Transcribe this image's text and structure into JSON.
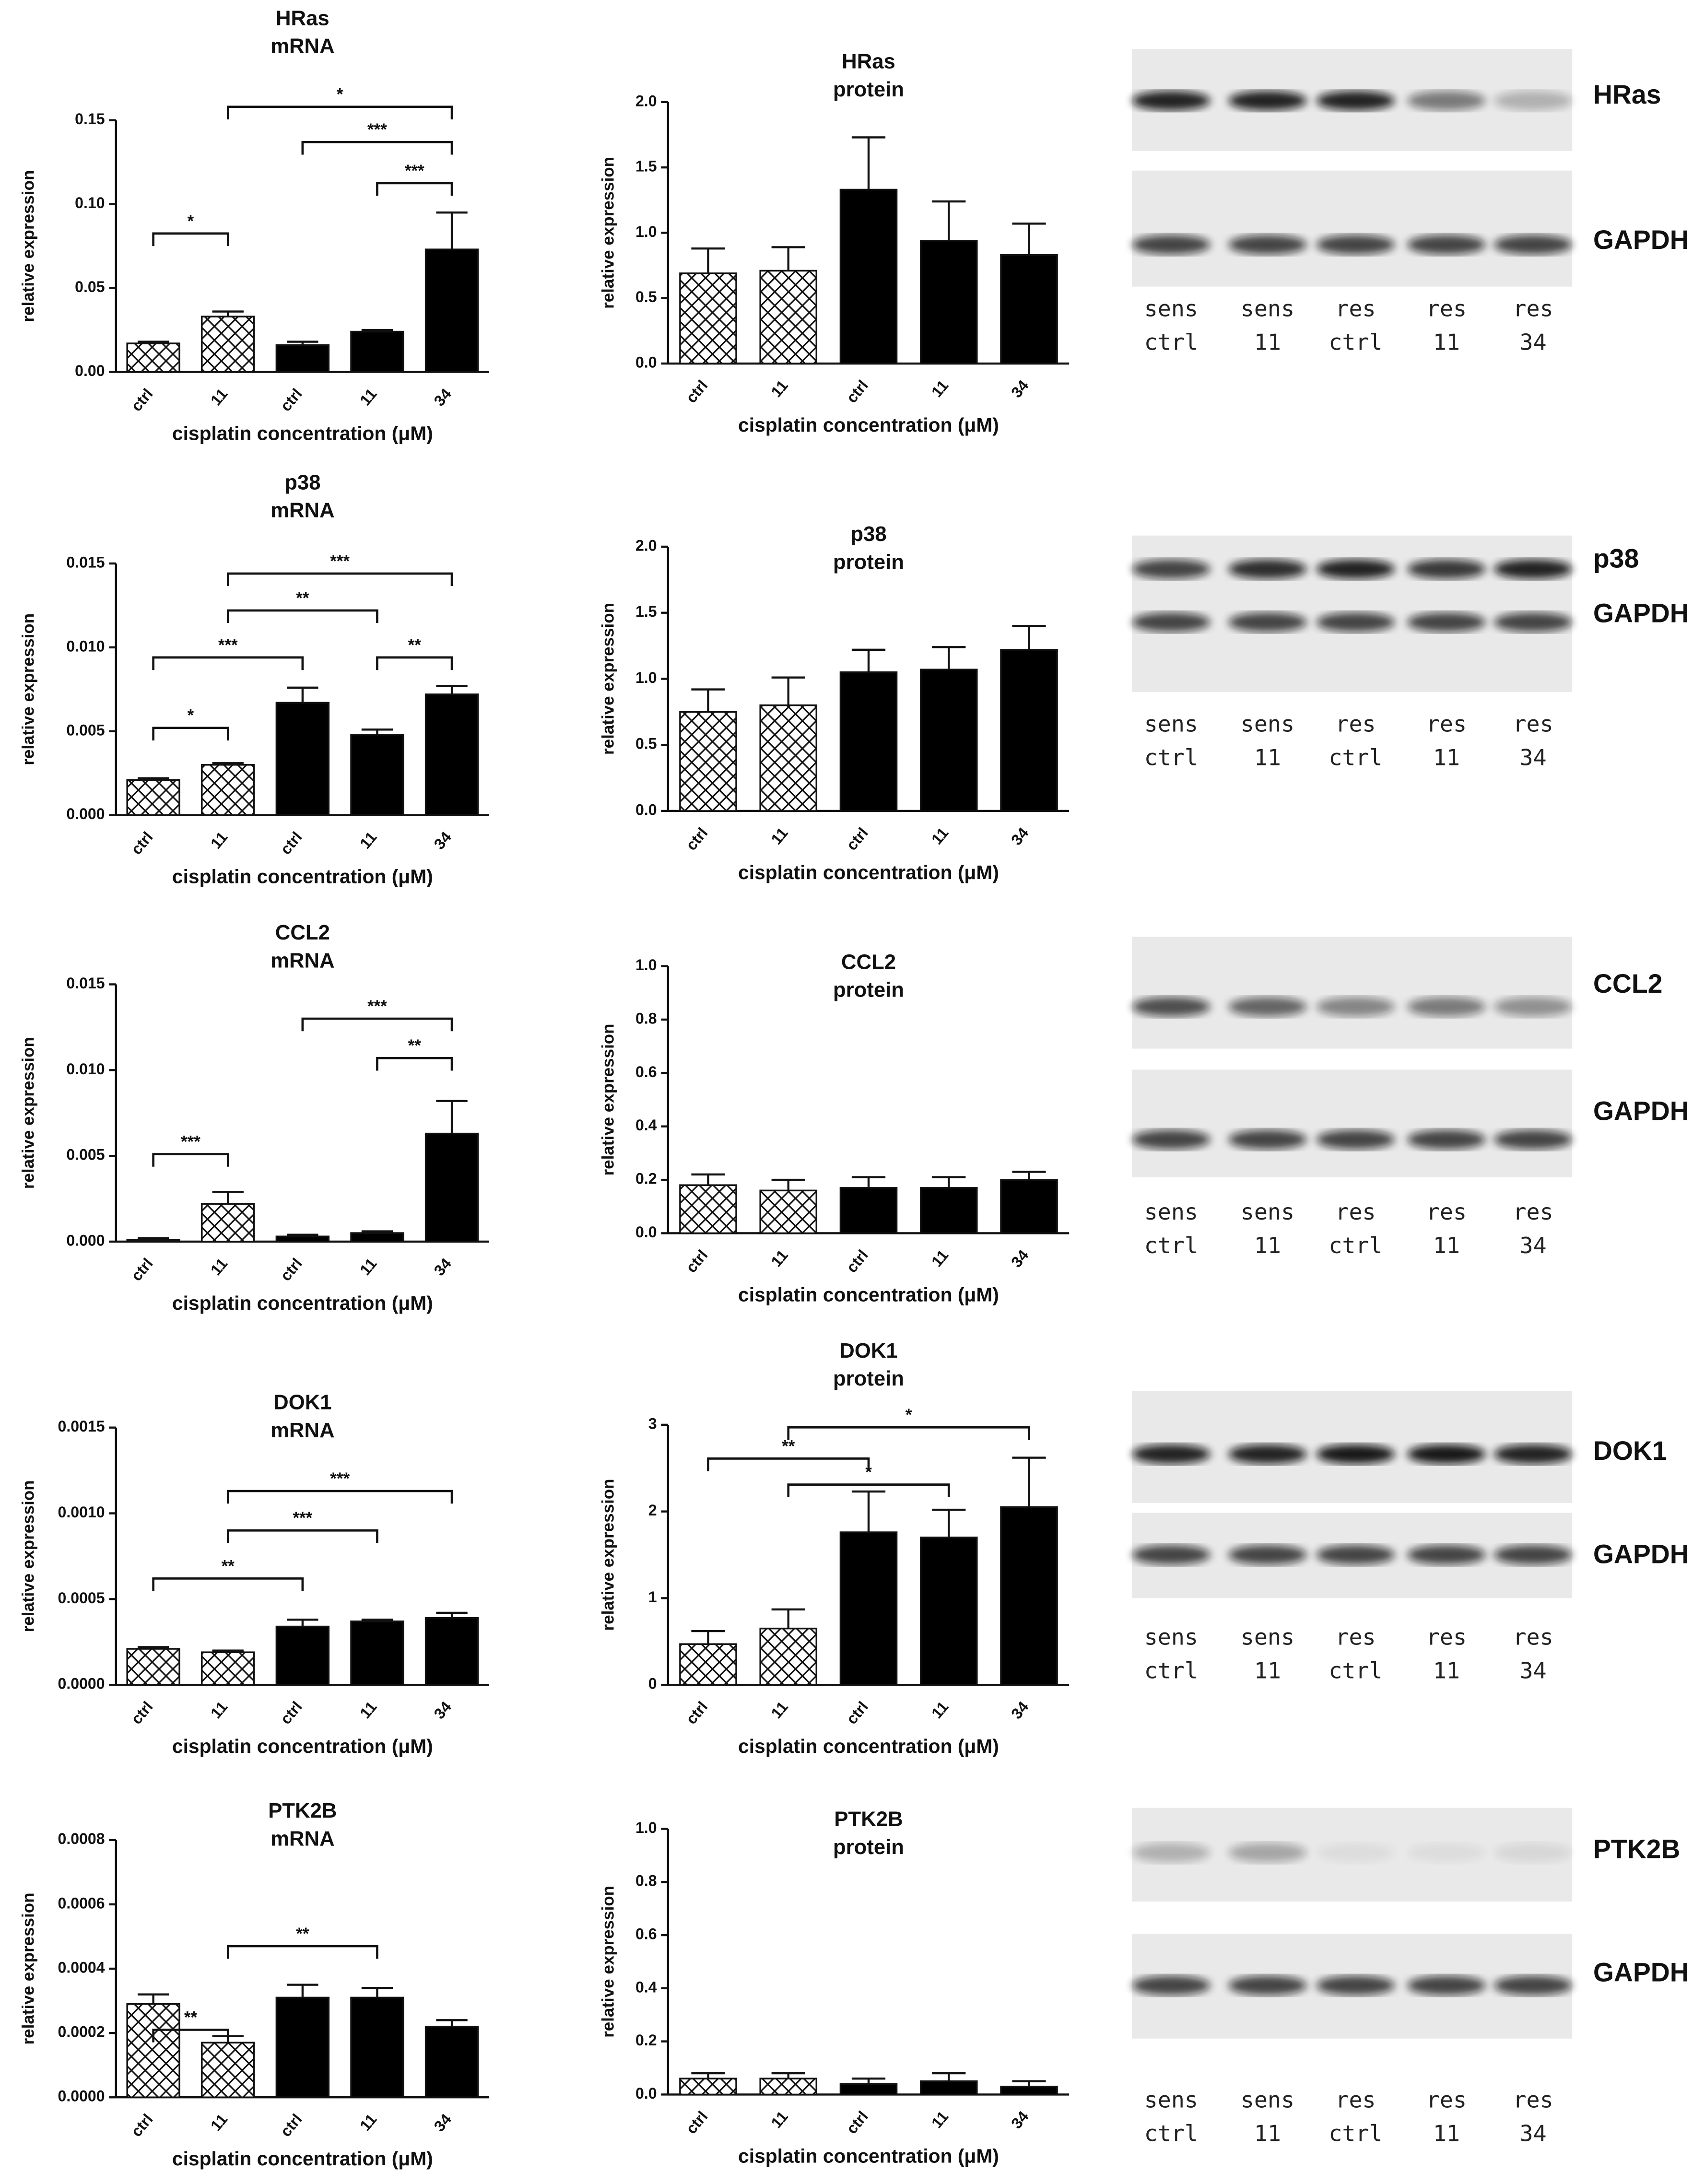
{
  "chart_data": [
    {
      "type": "bar",
      "title": "HRas",
      "subtitle": "mRNA",
      "ylabel": "relative expression",
      "xlabel": "cisplatin concentration (μM)",
      "categories": [
        "ctrl",
        "11",
        "ctrl",
        "11",
        "34"
      ],
      "hatched": [
        true,
        true,
        false,
        false,
        false
      ],
      "values": [
        0.017,
        0.033,
        0.016,
        0.024,
        0.073
      ],
      "errors": [
        0.001,
        0.003,
        0.002,
        0.001,
        0.022
      ],
      "ylim": [
        0,
        0.15
      ],
      "yticks": [
        {
          "value": 0,
          "label": "0.00"
        },
        {
          "value": 0.05,
          "label": "0.05"
        },
        {
          "value": 0.1,
          "label": "0.10"
        },
        {
          "value": 0.15,
          "label": "0.15"
        }
      ],
      "brackets": [
        {
          "from": 0,
          "to": 1,
          "y": 0.0825,
          "label": "*"
        },
        {
          "from": 1,
          "to": 4,
          "y": 0.158,
          "label": "*"
        },
        {
          "from": 2,
          "to": 4,
          "y": 0.137,
          "label": "***"
        },
        {
          "from": 3,
          "to": 4,
          "y": 0.1125,
          "label": "***"
        }
      ]
    },
    {
      "type": "bar",
      "title": "HRas",
      "subtitle": "protein",
      "ylabel": "relative expression",
      "xlabel": "cisplatin concentration (μM)",
      "categories": [
        "ctrl",
        "11",
        "ctrl",
        "11",
        "34"
      ],
      "hatched": [
        true,
        true,
        false,
        false,
        false
      ],
      "values": [
        0.69,
        0.71,
        1.33,
        0.94,
        0.83
      ],
      "errors": [
        0.19,
        0.18,
        0.4,
        0.3,
        0.24
      ],
      "ylim": [
        0,
        2
      ],
      "yticks": [
        {
          "value": 0,
          "label": "0.0"
        },
        {
          "value": 0.5,
          "label": "0.5"
        },
        {
          "value": 1,
          "label": "1.0"
        },
        {
          "value": 1.5,
          "label": "1.5"
        },
        {
          "value": 2,
          "label": "2.0"
        }
      ],
      "brackets": []
    },
    {
      "type": "bar",
      "title": "p38",
      "subtitle": "mRNA",
      "ylabel": "relative expression",
      "xlabel": "cisplatin concentration (μM)",
      "categories": [
        "ctrl",
        "11",
        "ctrl",
        "11",
        "34"
      ],
      "hatched": [
        true,
        true,
        false,
        false,
        false
      ],
      "values": [
        0.0021,
        0.003,
        0.0067,
        0.0048,
        0.0072
      ],
      "errors": [
        0.0001,
        0.0001,
        0.0009,
        0.0003,
        0.0005
      ],
      "ylim": [
        0,
        0.015
      ],
      "yticks": [
        {
          "value": 0,
          "label": "0.000"
        },
        {
          "value": 0.005,
          "label": "0.005"
        },
        {
          "value": 0.01,
          "label": "0.010"
        },
        {
          "value": 0.015,
          "label": "0.015"
        }
      ],
      "brackets": [
        {
          "from": 0,
          "to": 1,
          "y": 0.0052,
          "label": "*"
        },
        {
          "from": 0,
          "to": 2,
          "y": 0.0094,
          "label": "***"
        },
        {
          "from": 3,
          "to": 4,
          "y": 0.0094,
          "label": "**"
        },
        {
          "from": 1,
          "to": 3,
          "y": 0.0122,
          "label": "**"
        },
        {
          "from": 1,
          "to": 4,
          "y": 0.0144,
          "label": "***"
        }
      ]
    },
    {
      "type": "bar",
      "title": "p38",
      "subtitle": "protein",
      "ylabel": "relative expression",
      "xlabel": "cisplatin concentration (μM)",
      "categories": [
        "ctrl",
        "11",
        "ctrl",
        "11",
        "34"
      ],
      "hatched": [
        true,
        true,
        false,
        false,
        false
      ],
      "values": [
        0.75,
        0.8,
        1.05,
        1.07,
        1.22
      ],
      "errors": [
        0.17,
        0.21,
        0.17,
        0.17,
        0.18
      ],
      "ylim": [
        0,
        2
      ],
      "yticks": [
        {
          "value": 0,
          "label": "0.0"
        },
        {
          "value": 0.5,
          "label": "0.5"
        },
        {
          "value": 1,
          "label": "1.0"
        },
        {
          "value": 1.5,
          "label": "1.5"
        },
        {
          "value": 2,
          "label": "2.0"
        }
      ],
      "brackets": []
    },
    {
      "type": "bar",
      "title": "CCL2",
      "subtitle": "mRNA",
      "ylabel": "relative expression",
      "xlabel": "cisplatin concentration (μM)",
      "categories": [
        "ctrl",
        "11",
        "ctrl",
        "11",
        "34"
      ],
      "hatched": [
        true,
        true,
        false,
        false,
        false
      ],
      "values": [
        0.0001,
        0.0022,
        0.0003,
        0.0005,
        0.0063
      ],
      "errors": [
        0.0001,
        0.0007,
        0.0001,
        0.0001,
        0.0019
      ],
      "ylim": [
        0,
        0.015
      ],
      "yticks": [
        {
          "value": 0,
          "label": "0.000"
        },
        {
          "value": 0.005,
          "label": "0.005"
        },
        {
          "value": 0.01,
          "label": "0.010"
        },
        {
          "value": 0.015,
          "label": "0.015"
        }
      ],
      "brackets": [
        {
          "from": 0,
          "to": 1,
          "y": 0.0051,
          "label": "***"
        },
        {
          "from": 2,
          "to": 4,
          "y": 0.013,
          "label": "***"
        },
        {
          "from": 3,
          "to": 4,
          "y": 0.0107,
          "label": "**"
        }
      ]
    },
    {
      "type": "bar",
      "title": "CCL2",
      "subtitle": "protein",
      "ylabel": "relative expression",
      "xlabel": "cisplatin concentration (μM)",
      "categories": [
        "ctrl",
        "11",
        "ctrl",
        "11",
        "34"
      ],
      "hatched": [
        true,
        true,
        false,
        false,
        false
      ],
      "values": [
        0.18,
        0.16,
        0.17,
        0.17,
        0.2
      ],
      "errors": [
        0.04,
        0.04,
        0.04,
        0.04,
        0.03
      ],
      "ylim": [
        0,
        1
      ],
      "yticks": [
        {
          "value": 0,
          "label": "0.0"
        },
        {
          "value": 0.2,
          "label": "0.2"
        },
        {
          "value": 0.4,
          "label": "0.4"
        },
        {
          "value": 0.6,
          "label": "0.6"
        },
        {
          "value": 0.8,
          "label": "0.8"
        },
        {
          "value": 1,
          "label": "1.0"
        }
      ],
      "brackets": []
    },
    {
      "type": "bar",
      "title": "DOK1",
      "subtitle": "mRNA",
      "ylabel": "relative expression",
      "xlabel": "cisplatin concentration (μM)",
      "categories": [
        "ctrl",
        "11",
        "ctrl",
        "11",
        "34"
      ],
      "hatched": [
        true,
        true,
        false,
        false,
        false
      ],
      "values": [
        0.00021,
        0.00019,
        0.00034,
        0.00037,
        0.00039
      ],
      "errors": [
        1e-05,
        1e-05,
        4e-05,
        1e-05,
        3e-05
      ],
      "ylim": [
        0,
        0.0015
      ],
      "yticks": [
        {
          "value": 0,
          "label": "0.0000"
        },
        {
          "value": 0.0005,
          "label": "0.0005"
        },
        {
          "value": 0.001,
          "label": "0.0010"
        },
        {
          "value": 0.0015,
          "label": "0.0015"
        }
      ],
      "brackets": [
        {
          "from": 0,
          "to": 2,
          "y": 0.00062,
          "label": "**"
        },
        {
          "from": 1,
          "to": 3,
          "y": 0.0009,
          "label": "***"
        },
        {
          "from": 1,
          "to": 4,
          "y": 0.00113,
          "label": "***"
        }
      ]
    },
    {
      "type": "bar",
      "title": "DOK1",
      "subtitle": "protein",
      "ylabel": "relative expression",
      "xlabel": "cisplatin concentration (μM)",
      "categories": [
        "ctrl",
        "11",
        "ctrl",
        "11",
        "34"
      ],
      "hatched": [
        true,
        true,
        false,
        false,
        false
      ],
      "values": [
        0.47,
        0.65,
        1.76,
        1.7,
        2.05
      ],
      "errors": [
        0.15,
        0.22,
        0.47,
        0.32,
        0.57
      ],
      "ylim": [
        0,
        3
      ],
      "yticks": [
        0,
        1,
        2,
        3
      ],
      "brackets": [
        {
          "from": 0,
          "to": 2,
          "y": 2.61,
          "label": "**"
        },
        {
          "from": 1,
          "to": 3,
          "y": 2.31,
          "label": "*"
        },
        {
          "from": 1,
          "to": 4,
          "y": 2.97,
          "label": "*"
        }
      ]
    },
    {
      "type": "bar",
      "title": "PTK2B",
      "subtitle": "mRNA",
      "ylabel": "relative expression",
      "xlabel": "cisplatin concentration (μM)",
      "categories": [
        "ctrl",
        "11",
        "ctrl",
        "11",
        "34"
      ],
      "hatched": [
        true,
        true,
        false,
        false,
        false
      ],
      "values": [
        0.00029,
        0.00017,
        0.00031,
        0.00031,
        0.00022
      ],
      "errors": [
        3e-05,
        2e-05,
        4e-05,
        3e-05,
        2e-05
      ],
      "ylim": [
        0,
        0.0008
      ],
      "yticks": [
        {
          "value": 0,
          "label": "0.0000"
        },
        {
          "value": 0.0002,
          "label": "0.0002"
        },
        {
          "value": 0.0004,
          "label": "0.0004"
        },
        {
          "value": 0.0006,
          "label": "0.0006"
        },
        {
          "value": 0.0008,
          "label": "0.0008"
        }
      ],
      "brackets": [
        {
          "from": 0,
          "to": 1,
          "y": 0.00021,
          "label": "**"
        },
        {
          "from": 1,
          "to": 3,
          "y": 0.00047,
          "label": "**"
        }
      ]
    },
    {
      "type": "bar",
      "title": "PTK2B",
      "subtitle": "protein",
      "ylabel": "relative expression",
      "xlabel": "cisplatin concentration (μM)",
      "categories": [
        "ctrl",
        "11",
        "ctrl",
        "11",
        "34"
      ],
      "hatched": [
        true,
        true,
        false,
        false,
        false
      ],
      "values": [
        0.06,
        0.06,
        0.04,
        0.05,
        0.03
      ],
      "errors": [
        0.02,
        0.02,
        0.02,
        0.03,
        0.02
      ],
      "ylim": [
        0,
        1
      ],
      "yticks": [
        {
          "value": 0,
          "label": "0.0"
        },
        {
          "value": 0.2,
          "label": "0.2"
        },
        {
          "value": 0.4,
          "label": "0.4"
        },
        {
          "value": 0.6,
          "label": "0.6"
        },
        {
          "value": 0.8,
          "label": "0.8"
        },
        {
          "value": 1,
          "label": "1.0"
        }
      ],
      "brackets": []
    }
  ],
  "blots": [
    {
      "proteins": [
        "HRas",
        "GAPDH"
      ],
      "lanes": [
        [
          "sens",
          "ctrl"
        ],
        [
          "sens",
          "11"
        ],
        [
          "res",
          "ctrl"
        ],
        [
          "res",
          "11"
        ],
        [
          "res",
          "34"
        ]
      ]
    },
    {
      "proteins": [
        "p38",
        "GAPDH"
      ],
      "lanes": [
        [
          "sens",
          "ctrl"
        ],
        [
          "sens",
          "11"
        ],
        [
          "res",
          "ctrl"
        ],
        [
          "res",
          "11"
        ],
        [
          "res",
          "34"
        ]
      ]
    },
    {
      "proteins": [
        "CCL2",
        "GAPDH"
      ],
      "lanes": [
        [
          "sens",
          "ctrl"
        ],
        [
          "sens",
          "11"
        ],
        [
          "res",
          "ctrl"
        ],
        [
          "res",
          "11"
        ],
        [
          "res",
          "34"
        ]
      ]
    },
    {
      "proteins": [
        "DOK1",
        "GAPDH"
      ],
      "lanes": [
        [
          "sens",
          "ctrl"
        ],
        [
          "sens",
          "11"
        ],
        [
          "res",
          "ctrl"
        ],
        [
          "res",
          "11"
        ],
        [
          "res",
          "34"
        ]
      ]
    },
    {
      "proteins": [
        "PTK2B",
        "GAPDH"
      ],
      "lanes": [
        [
          "sens",
          "ctrl"
        ],
        [
          "sens",
          "11"
        ],
        [
          "res",
          "ctrl"
        ],
        [
          "res",
          "11"
        ],
        [
          "res",
          "34"
        ]
      ]
    }
  ]
}
